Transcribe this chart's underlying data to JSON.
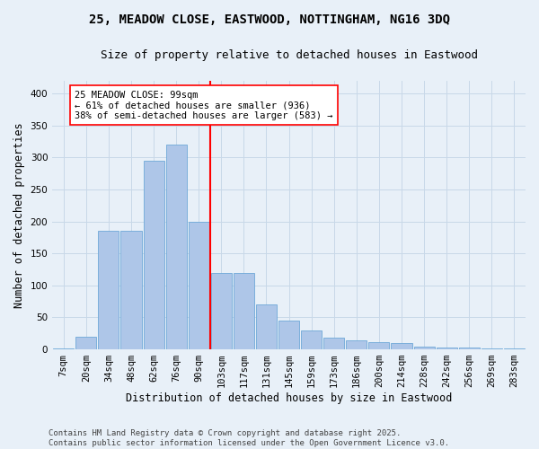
{
  "title_line1": "25, MEADOW CLOSE, EASTWOOD, NOTTINGHAM, NG16 3DQ",
  "title_line2": "Size of property relative to detached houses in Eastwood",
  "xlabel": "Distribution of detached houses by size in Eastwood",
  "ylabel": "Number of detached properties",
  "footer": "Contains HM Land Registry data © Crown copyright and database right 2025.\nContains public sector information licensed under the Open Government Licence v3.0.",
  "bar_labels": [
    "7sqm",
    "20sqm",
    "34sqm",
    "48sqm",
    "62sqm",
    "76sqm",
    "90sqm",
    "103sqm",
    "117sqm",
    "131sqm",
    "145sqm",
    "159sqm",
    "173sqm",
    "186sqm",
    "200sqm",
    "214sqm",
    "228sqm",
    "242sqm",
    "256sqm",
    "269sqm",
    "283sqm"
  ],
  "bar_values": [
    2,
    20,
    185,
    185,
    295,
    320,
    200,
    120,
    120,
    70,
    45,
    30,
    18,
    14,
    12,
    10,
    4,
    3,
    3,
    2,
    2
  ],
  "bar_color": "#aec6e8",
  "bar_edge_color": "#6ea8d8",
  "reference_line_color": "red",
  "annotation_text": "25 MEADOW CLOSE: 99sqm\n← 61% of detached houses are smaller (936)\n38% of semi-detached houses are larger (583) →",
  "annotation_box_color": "white",
  "annotation_box_edge_color": "red",
  "ylim": [
    0,
    420
  ],
  "yticks": [
    0,
    50,
    100,
    150,
    200,
    250,
    300,
    350,
    400
  ],
  "grid_color": "#c8d8e8",
  "background_color": "#e8f0f8",
  "title_fontsize": 10,
  "subtitle_fontsize": 9,
  "axis_label_fontsize": 8.5,
  "tick_fontsize": 7.5,
  "annotation_fontsize": 7.5,
  "footer_fontsize": 6.5,
  "ref_bar_index": 6.5
}
